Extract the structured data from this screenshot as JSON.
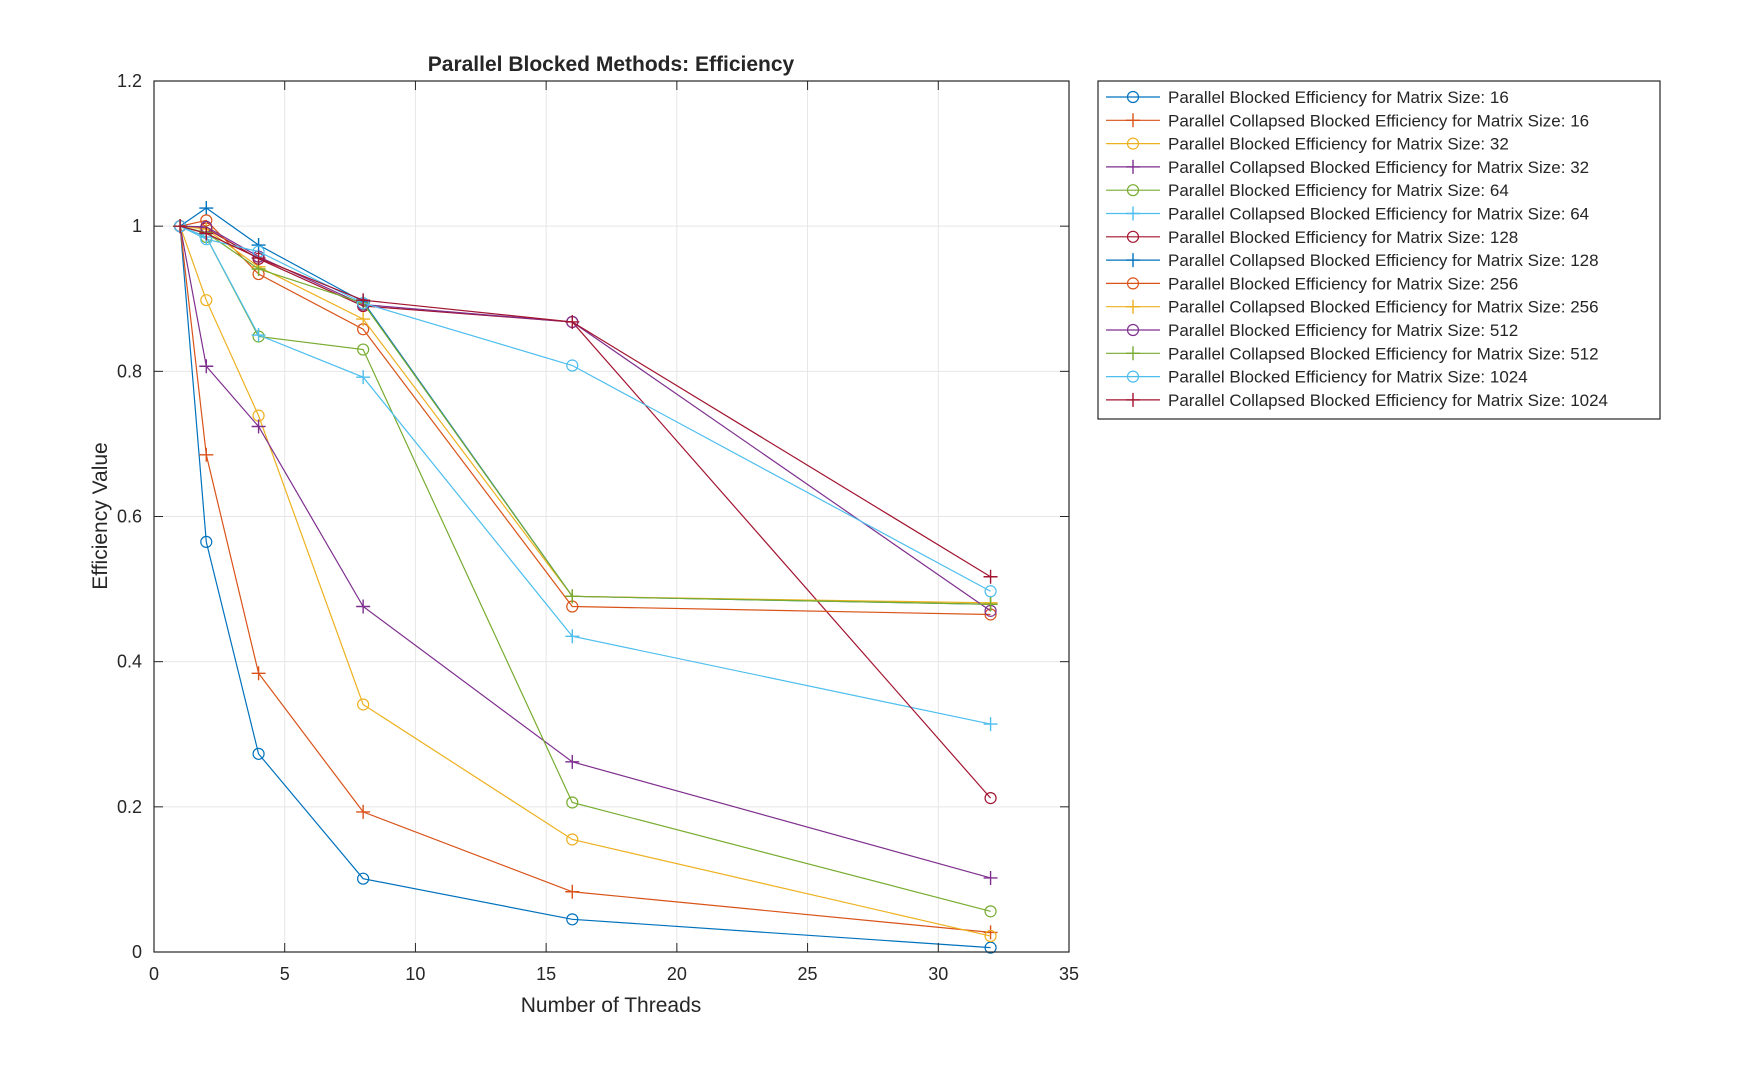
{
  "chart_data": {
    "type": "line",
    "title": "Parallel Blocked Methods: Efficiency",
    "xlabel": "Number of Threads",
    "ylabel": "Efficiency Value",
    "xlim": [
      0,
      35
    ],
    "ylim": [
      0,
      1.2
    ],
    "xticks": [
      "0",
      "5",
      "10",
      "15",
      "20",
      "25",
      "30",
      "35"
    ],
    "yticks": [
      "0",
      "0.2",
      "0.4",
      "0.6",
      "0.8",
      "1",
      "1.2"
    ],
    "grid": true,
    "legend_position": "outside-right",
    "x": [
      1,
      2,
      4,
      8,
      16,
      32
    ],
    "series": [
      {
        "name": "Parallel Blocked Efficiency for Matrix Size: 16",
        "color": "#0072BD",
        "marker": "o",
        "values": [
          1,
          0.565,
          0.273,
          0.101,
          0.045,
          0.006
        ]
      },
      {
        "name": "Parallel Collapsed Blocked Efficiency for Matrix Size: 16",
        "color": "#D95319",
        "marker": "+",
        "values": [
          1,
          0.685,
          0.384,
          0.193,
          0.083,
          0.027
        ]
      },
      {
        "name": "Parallel Blocked Efficiency for Matrix Size: 32",
        "color": "#EDB120",
        "marker": "o",
        "values": [
          1,
          0.898,
          0.739,
          0.341,
          0.155,
          0.022
        ]
      },
      {
        "name": "Parallel Collapsed Blocked Efficiency for Matrix Size: 32",
        "color": "#7E2F8E",
        "marker": "+",
        "values": [
          1,
          0.807,
          0.724,
          0.476,
          0.262,
          0.102
        ]
      },
      {
        "name": "Parallel Blocked Efficiency for Matrix Size: 64",
        "color": "#77AC30",
        "marker": "o",
        "values": [
          1,
          0.985,
          0.848,
          0.83,
          0.206,
          0.056
        ]
      },
      {
        "name": "Parallel Collapsed Blocked Efficiency for Matrix Size: 64",
        "color": "#4DBEEE",
        "marker": "+",
        "values": [
          1,
          0.985,
          0.85,
          0.792,
          0.435,
          0.314
        ]
      },
      {
        "name": "Parallel Blocked Efficiency for Matrix Size: 128",
        "color": "#A2142F",
        "marker": "o",
        "values": [
          1,
          0.997,
          0.955,
          0.89,
          0.868,
          0.212
        ]
      },
      {
        "name": "Parallel Collapsed Blocked Efficiency for Matrix Size: 128",
        "color": "#0072BD",
        "marker": "+",
        "values": [
          1,
          1.025,
          0.974,
          0.896,
          0.49,
          0.479
        ]
      },
      {
        "name": "Parallel Blocked Efficiency for Matrix Size: 256",
        "color": "#D95319",
        "marker": "o",
        "values": [
          1,
          1.008,
          0.934,
          0.858,
          0.476,
          0.465
        ]
      },
      {
        "name": "Parallel Collapsed Blocked Efficiency for Matrix Size: 256",
        "color": "#EDB120",
        "marker": "+",
        "values": [
          1,
          0.996,
          0.944,
          0.872,
          0.49,
          0.481
        ]
      },
      {
        "name": "Parallel Blocked Efficiency for Matrix Size: 512",
        "color": "#7E2F8E",
        "marker": "o",
        "values": [
          1,
          0.999,
          0.958,
          0.892,
          0.868,
          0.47
        ]
      },
      {
        "name": "Parallel Collapsed Blocked Efficiency for Matrix Size: 512",
        "color": "#77AC30",
        "marker": "+",
        "values": [
          1,
          0.991,
          0.941,
          0.894,
          0.49,
          0.479
        ]
      },
      {
        "name": "Parallel Blocked Efficiency for Matrix Size: 1024",
        "color": "#4DBEEE",
        "marker": "o",
        "values": [
          1,
          0.982,
          0.965,
          0.894,
          0.808,
          0.497
        ]
      },
      {
        "name": "Parallel Collapsed Blocked Efficiency for Matrix Size: 1024",
        "color": "#A2142F",
        "marker": "+",
        "values": [
          1,
          0.99,
          0.956,
          0.898,
          0.868,
          0.517
        ]
      }
    ]
  }
}
